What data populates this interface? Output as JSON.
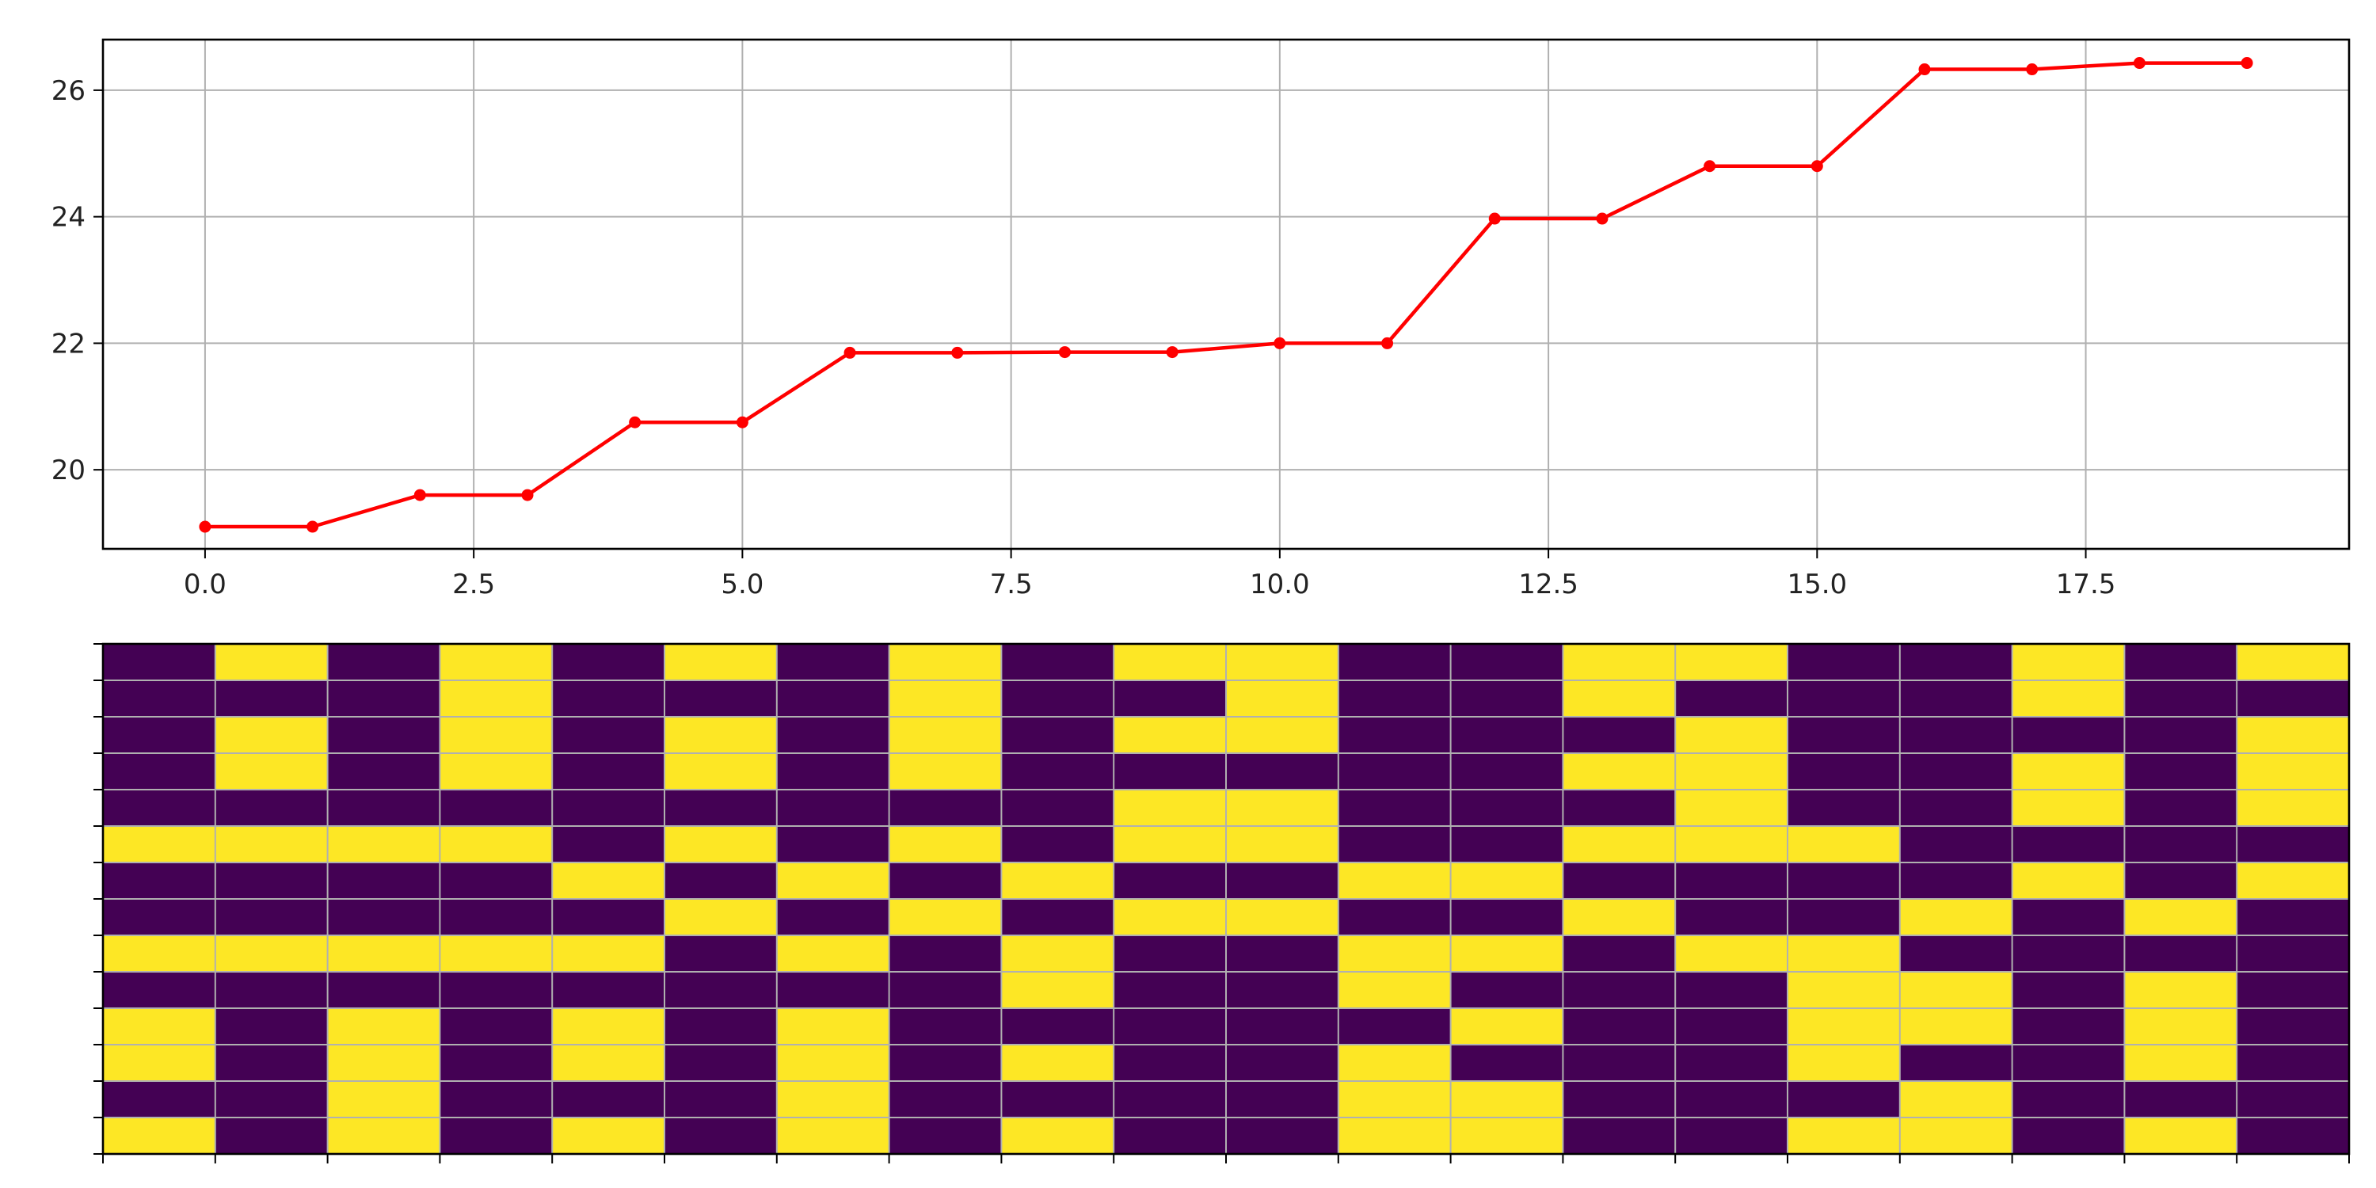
{
  "chart_data": [
    {
      "type": "line",
      "title": "",
      "xlabel": "",
      "ylabel": "",
      "color": "#ff0000",
      "marker": "circle",
      "grid": true,
      "xlim": [
        -0.95,
        19.95
      ],
      "ylim": [
        18.75,
        26.8
      ],
      "xticks": [
        0.0,
        2.5,
        5.0,
        7.5,
        10.0,
        12.5,
        15.0,
        17.5
      ],
      "xtick_labels": [
        "0.0",
        "2.5",
        "5.0",
        "7.5",
        "10.0",
        "12.5",
        "15.0",
        "17.5"
      ],
      "yticks": [
        20,
        22,
        24,
        26
      ],
      "ytick_labels": [
        "20",
        "22",
        "24",
        "26"
      ],
      "x": [
        0,
        1,
        2,
        3,
        4,
        5,
        6,
        7,
        8,
        9,
        10,
        11,
        12,
        13,
        14,
        15,
        16,
        17,
        18,
        19
      ],
      "y": [
        19.1,
        19.1,
        19.6,
        19.6,
        20.75,
        20.75,
        21.85,
        21.85,
        21.86,
        21.86,
        22.0,
        22.0,
        23.97,
        23.97,
        24.8,
        24.8,
        26.33,
        26.33,
        26.43,
        26.43
      ]
    },
    {
      "type": "heatmap",
      "title": "",
      "colormap": "viridis",
      "colors": {
        "0": "#440154",
        "1": "#fde725"
      },
      "grid": true,
      "grid_color": "#b0b0b0",
      "tick_labels_visible": false,
      "columns": 20,
      "rows": 14,
      "values": [
        [
          0,
          1,
          0,
          1,
          0,
          1,
          0,
          1,
          0,
          1,
          1,
          0,
          0,
          1,
          1,
          0,
          0,
          1,
          0,
          1
        ],
        [
          0,
          0,
          0,
          1,
          0,
          0,
          0,
          1,
          0,
          0,
          1,
          0,
          0,
          1,
          0,
          0,
          0,
          1,
          0,
          0
        ],
        [
          0,
          1,
          0,
          1,
          0,
          1,
          0,
          1,
          0,
          1,
          1,
          0,
          0,
          0,
          1,
          0,
          0,
          0,
          0,
          1
        ],
        [
          0,
          1,
          0,
          1,
          0,
          1,
          0,
          1,
          0,
          0,
          0,
          0,
          0,
          1,
          1,
          0,
          0,
          1,
          0,
          1
        ],
        [
          0,
          0,
          0,
          0,
          0,
          0,
          0,
          0,
          0,
          1,
          1,
          0,
          0,
          0,
          1,
          0,
          0,
          1,
          0,
          1
        ],
        [
          1,
          1,
          1,
          1,
          0,
          1,
          0,
          1,
          0,
          1,
          1,
          0,
          0,
          1,
          1,
          1,
          0,
          0,
          0,
          0
        ],
        [
          0,
          0,
          0,
          0,
          1,
          0,
          1,
          0,
          1,
          0,
          0,
          1,
          1,
          0,
          0,
          0,
          0,
          1,
          0,
          1
        ],
        [
          0,
          0,
          0,
          0,
          0,
          1,
          0,
          1,
          0,
          1,
          1,
          0,
          0,
          1,
          0,
          0,
          1,
          0,
          1,
          0
        ],
        [
          1,
          1,
          1,
          1,
          1,
          0,
          1,
          0,
          1,
          0,
          0,
          1,
          1,
          0,
          1,
          1,
          0,
          0,
          0,
          0
        ],
        [
          0,
          0,
          0,
          0,
          0,
          0,
          0,
          0,
          1,
          0,
          0,
          1,
          0,
          0,
          0,
          1,
          1,
          0,
          1,
          0
        ],
        [
          1,
          0,
          1,
          0,
          1,
          0,
          1,
          0,
          0,
          0,
          0,
          0,
          1,
          0,
          0,
          1,
          1,
          0,
          1,
          0
        ],
        [
          1,
          0,
          1,
          0,
          1,
          0,
          1,
          0,
          1,
          0,
          0,
          1,
          0,
          0,
          0,
          1,
          0,
          0,
          1,
          0
        ],
        [
          0,
          0,
          1,
          0,
          0,
          0,
          1,
          0,
          0,
          0,
          0,
          1,
          1,
          0,
          0,
          0,
          1,
          0,
          0,
          0
        ],
        [
          1,
          0,
          1,
          0,
          1,
          0,
          1,
          0,
          1,
          0,
          0,
          1,
          1,
          0,
          0,
          1,
          1,
          0,
          1,
          0
        ]
      ]
    }
  ]
}
